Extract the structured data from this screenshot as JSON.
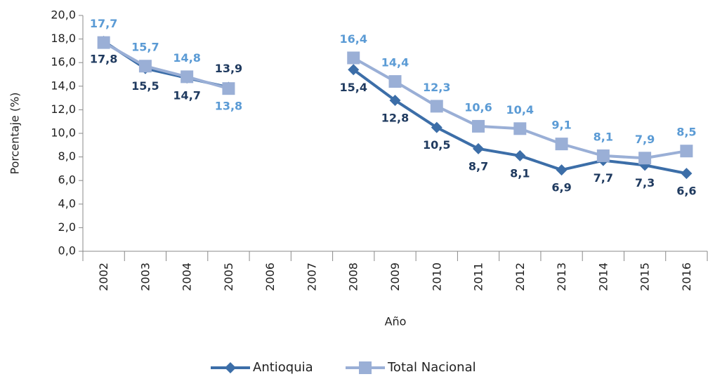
{
  "chart_data": {
    "type": "line",
    "y_label": "Porcentaje (%)",
    "x_label": "Año",
    "categories": [
      "2002",
      "2003",
      "2004",
      "2005",
      "2006",
      "2007",
      "2008",
      "2009",
      "2010",
      "2011",
      "2012",
      "2013",
      "2014",
      "2015",
      "2016"
    ],
    "series": [
      {
        "name": "Antioquia",
        "color": "#3c6ea8",
        "label_color": "#1f3a5f",
        "marker": "diamond",
        "values": [
          17.8,
          15.5,
          14.7,
          13.9,
          null,
          null,
          15.4,
          12.8,
          10.5,
          8.7,
          8.1,
          6.9,
          7.7,
          7.3,
          6.6
        ],
        "value_labels": [
          "17,8",
          "15,5",
          "14,7",
          "13,9",
          null,
          null,
          "15,4",
          "12,8",
          "10,5",
          "8,7",
          "8,1",
          "6,9",
          "7,7",
          "7,3",
          "6,6"
        ]
      },
      {
        "name": "Total Nacional",
        "color": "#9aafd6",
        "label_color": "#5b9bd5",
        "marker": "square",
        "values": [
          17.7,
          15.7,
          14.8,
          13.8,
          null,
          null,
          16.4,
          14.4,
          12.3,
          10.6,
          10.4,
          9.1,
          8.1,
          7.9,
          8.5
        ],
        "value_labels": [
          "17,7",
          "15,7",
          "14,8",
          "13,8",
          null,
          null,
          "16,4",
          "14,4",
          "12,3",
          "10,6",
          "10,4",
          "9,1",
          "8,1",
          "7,9",
          "8,5"
        ]
      }
    ],
    "ylim": [
      0,
      20
    ],
    "yticks": [
      {
        "value": 0,
        "label": "0,0"
      },
      {
        "value": 2,
        "label": "2,0"
      },
      {
        "value": 4,
        "label": "4,0"
      },
      {
        "value": 6,
        "label": "6,0"
      },
      {
        "value": 8,
        "label": "8,0"
      },
      {
        "value": 10,
        "label": "10,0"
      },
      {
        "value": 12,
        "label": "12,0"
      },
      {
        "value": 14,
        "label": "14,0"
      },
      {
        "value": 16,
        "label": "16,0"
      },
      {
        "value": 18,
        "label": "18,0"
      },
      {
        "value": 20,
        "label": "20,0"
      }
    ],
    "legend": "bottom"
  }
}
